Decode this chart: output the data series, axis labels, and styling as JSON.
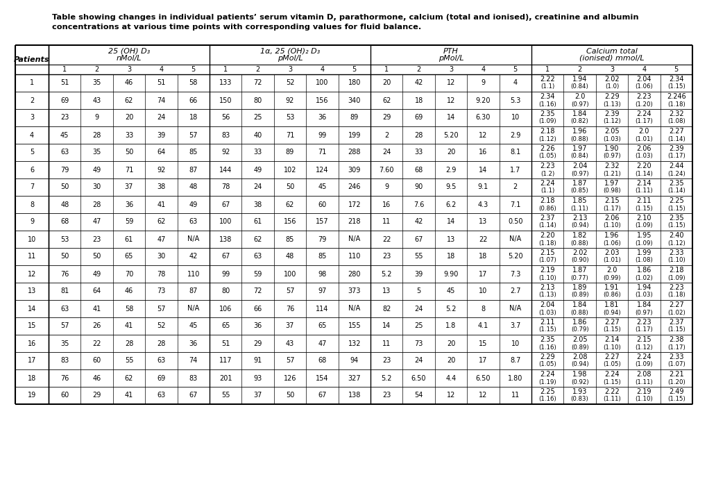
{
  "title_line1": "Table showing changes in individual patients’ serum vitamin D, parathormone, calcium (total and ionised), creatinine and albumin",
  "title_line2": "concentrations at various time points with corresponding values for fluid balance.",
  "col_groups": [
    {
      "label": "25 (OH) D₃\nnMol/L",
      "span": 5
    },
    {
      "label": "1α, 25 (OH)₂ D₃\npMol/L",
      "span": 5
    },
    {
      "label": "PTH\npMol/L",
      "span": 5
    },
    {
      "label": "Calcium total\n(ionised) mmol/L",
      "span": 5
    }
  ],
  "sub_cols": [
    "1",
    "2",
    "3",
    "4",
    "5"
  ],
  "rows": [
    {
      "patient": "1",
      "vd": [
        "51",
        "35",
        "46",
        "51",
        "58"
      ],
      "vd2": [
        "133",
        "72",
        "52",
        "100",
        "180"
      ],
      "pth": [
        "20",
        "42",
        "12",
        "9",
        "4"
      ],
      "ca": [
        [
          "2.22",
          "(1.1)"
        ],
        [
          "1.94",
          "(0.84)"
        ],
        [
          "2.02",
          "(1.0)"
        ],
        [
          "2.04",
          "(1.06)"
        ],
        [
          "2.34",
          "(1.15)"
        ]
      ]
    },
    {
      "patient": "2",
      "vd": [
        "69",
        "43",
        "62",
        "74",
        "66"
      ],
      "vd2": [
        "150",
        "80",
        "92",
        "156",
        "340"
      ],
      "pth": [
        "62",
        "18",
        "12",
        "9.20",
        "5.3"
      ],
      "ca": [
        [
          "2.34",
          "(1.16)"
        ],
        [
          "2.0",
          "(0.97)"
        ],
        [
          "2.29",
          "(1.13)"
        ],
        [
          "2.23",
          "(1.20)"
        ],
        [
          "2.246",
          "(1.18)"
        ]
      ]
    },
    {
      "patient": "3",
      "vd": [
        "23",
        "9",
        "20",
        "24",
        "18"
      ],
      "vd2": [
        "56",
        "25",
        "53",
        "36",
        "89"
      ],
      "pth": [
        "29",
        "69",
        "14",
        "6.30",
        "10"
      ],
      "ca": [
        [
          "2.35",
          "(1.09)"
        ],
        [
          "1.84",
          "(0.82)"
        ],
        [
          "2.39",
          "(1.12)"
        ],
        [
          "2.24",
          "(1.17)"
        ],
        [
          "2.32",
          "(1.08)"
        ]
      ]
    },
    {
      "patient": "4",
      "vd": [
        "45",
        "28",
        "33",
        "39",
        "57"
      ],
      "vd2": [
        "83",
        "40",
        "71",
        "99",
        "199"
      ],
      "pth": [
        "2",
        "28",
        "5.20",
        "12",
        "2.9"
      ],
      "ca": [
        [
          "2.18",
          "(1.12)"
        ],
        [
          "1.96",
          "(0.88)"
        ],
        [
          "2.05",
          "(1.03)"
        ],
        [
          "2.0",
          "(1.01)"
        ],
        [
          "2.27",
          "(1.14)"
        ]
      ]
    },
    {
      "patient": "5",
      "vd": [
        "63",
        "35",
        "50",
        "64",
        "85"
      ],
      "vd2": [
        "92",
        "33",
        "89",
        "71",
        "288"
      ],
      "pth": [
        "24",
        "33",
        "20",
        "16",
        "8.1"
      ],
      "ca": [
        [
          "2.26",
          "(1.05)"
        ],
        [
          "1.97",
          "(0.84)"
        ],
        [
          "1.90",
          "(0.97)"
        ],
        [
          "2.06",
          "(1.03)"
        ],
        [
          "2.39",
          "(1.17)"
        ]
      ]
    },
    {
      "patient": "6",
      "vd": [
        "79",
        "49",
        "71",
        "92",
        "87"
      ],
      "vd2": [
        "144",
        "49",
        "102",
        "124",
        "309"
      ],
      "pth": [
        "7.60",
        "68",
        "2.9",
        "14",
        "1.7"
      ],
      "ca": [
        [
          "2.23",
          "(1.2)"
        ],
        [
          "2.04",
          "(0.97)"
        ],
        [
          "2.32",
          "(1.21)"
        ],
        [
          "2.20",
          "(1.14)"
        ],
        [
          "2.44",
          "(1.24)"
        ]
      ]
    },
    {
      "patient": "7",
      "vd": [
        "50",
        "30",
        "37",
        "38",
        "48"
      ],
      "vd2": [
        "78",
        "24",
        "50",
        "45",
        "246"
      ],
      "pth": [
        "9",
        "90",
        "9.5",
        "9.1",
        "2"
      ],
      "ca": [
        [
          "2.24",
          "(1.1)"
        ],
        [
          "1.87",
          "(0.85)"
        ],
        [
          "1.97",
          "(0.98)"
        ],
        [
          "2.14",
          "(1.11)"
        ],
        [
          "2.35",
          "(1.14)"
        ]
      ]
    },
    {
      "patient": "8",
      "vd": [
        "48",
        "28",
        "36",
        "41",
        "49"
      ],
      "vd2": [
        "67",
        "38",
        "62",
        "60",
        "172"
      ],
      "pth": [
        "16",
        "7.6",
        "6.2",
        "4.3",
        "7.1"
      ],
      "ca": [
        [
          "2.18",
          "(0.86)"
        ],
        [
          "1.85",
          "(1.11)"
        ],
        [
          "2.15",
          "(1.17)"
        ],
        [
          "2.11",
          "(1.15)"
        ],
        [
          "2.25",
          "(1.15)"
        ]
      ]
    },
    {
      "patient": "9",
      "vd": [
        "68",
        "47",
        "59",
        "62",
        "63"
      ],
      "vd2": [
        "100",
        "61",
        "156",
        "157",
        "218"
      ],
      "pth": [
        "11",
        "42",
        "14",
        "13",
        "0.50"
      ],
      "ca": [
        [
          "2.37",
          "(1.14)"
        ],
        [
          "2.13",
          "(0.94)"
        ],
        [
          "2.06",
          "(1.10)"
        ],
        [
          "2.10",
          "(1.09)"
        ],
        [
          "2.35",
          "(1.15)"
        ]
      ]
    },
    {
      "patient": "10",
      "vd": [
        "53",
        "23",
        "61",
        "47",
        "N/A"
      ],
      "vd2": [
        "138",
        "62",
        "85",
        "79",
        "N/A"
      ],
      "pth": [
        "22",
        "67",
        "13",
        "22",
        "N/A"
      ],
      "ca": [
        [
          "2.20",
          "(1.18)"
        ],
        [
          "1.82",
          "(0.88)"
        ],
        [
          "1.96",
          "(1.06)"
        ],
        [
          "1.95",
          "(1.09)"
        ],
        [
          "2.40",
          "(1.12)"
        ]
      ]
    },
    {
      "patient": "11",
      "vd": [
        "50",
        "50",
        "65",
        "30",
        "42"
      ],
      "vd2": [
        "67",
        "63",
        "48",
        "85",
        "110"
      ],
      "pth": [
        "23",
        "55",
        "18",
        "18",
        "5.20"
      ],
      "ca": [
        [
          "2.15",
          "(1.07)"
        ],
        [
          "2.02",
          "(0.90)"
        ],
        [
          "2.03",
          "(1.01)"
        ],
        [
          "1.99",
          "(1.08)"
        ],
        [
          "2.33",
          "(1.10)"
        ]
      ]
    },
    {
      "patient": "12",
      "vd": [
        "76",
        "49",
        "70",
        "78",
        "110"
      ],
      "vd2": [
        "99",
        "59",
        "100",
        "98",
        "280"
      ],
      "pth": [
        "5.2",
        "39",
        "9.90",
        "17",
        "7.3"
      ],
      "ca": [
        [
          "2.19",
          "(1.10)"
        ],
        [
          "1.87",
          "(0.77)"
        ],
        [
          "2.0",
          "(0.99)"
        ],
        [
          "1.86",
          "(1.02)"
        ],
        [
          "2.18",
          "(1.09)"
        ]
      ]
    },
    {
      "patient": "13",
      "vd": [
        "81",
        "64",
        "46",
        "73",
        "87"
      ],
      "vd2": [
        "80",
        "72",
        "57",
        "97",
        "373"
      ],
      "pth": [
        "13",
        "5",
        "45",
        "10",
        "2.7"
      ],
      "ca": [
        [
          "2.13",
          "(1.13)"
        ],
        [
          "1.89",
          "(0.89)"
        ],
        [
          "1.91",
          "(0.86)"
        ],
        [
          "1.94",
          "(1.03)"
        ],
        [
          "2.23",
          "(1.18)"
        ]
      ]
    },
    {
      "patient": "14",
      "vd": [
        "63",
        "41",
        "58",
        "57",
        "N/A"
      ],
      "vd2": [
        "106",
        "66",
        "76",
        "114",
        "N/A"
      ],
      "pth": [
        "82",
        "24",
        "5.2",
        "8",
        "N/A"
      ],
      "ca": [
        [
          "2.04",
          "(1.03)"
        ],
        [
          "1.84",
          "(0.88)"
        ],
        [
          "1.81",
          "(0.94)"
        ],
        [
          "1.84",
          "(0.97)"
        ],
        [
          "2.27",
          "(1.02)"
        ]
      ]
    },
    {
      "patient": "15",
      "vd": [
        "57",
        "26",
        "41",
        "52",
        "45"
      ],
      "vd2": [
        "65",
        "36",
        "37",
        "65",
        "155"
      ],
      "pth": [
        "14",
        "25",
        "1.8",
        "4.1",
        "3.7"
      ],
      "ca": [
        [
          "2.11",
          "(1.15)"
        ],
        [
          "1.86",
          "(0.79)"
        ],
        [
          "2.27",
          "(1.15)"
        ],
        [
          "2.23",
          "(1.17)"
        ],
        [
          "2.37",
          "(1.15)"
        ]
      ]
    },
    {
      "patient": "16",
      "vd": [
        "35",
        "22",
        "28",
        "28",
        "36"
      ],
      "vd2": [
        "51",
        "29",
        "43",
        "47",
        "132"
      ],
      "pth": [
        "11",
        "73",
        "20",
        "15",
        "10"
      ],
      "ca": [
        [
          "2.35",
          "(1.16)"
        ],
        [
          "2.05",
          "(0.89)"
        ],
        [
          "2.14",
          "(1.10)"
        ],
        [
          "2.15",
          "(1.12)"
        ],
        [
          "2.38",
          "(1.17)"
        ]
      ]
    },
    {
      "patient": "17",
      "vd": [
        "83",
        "60",
        "55",
        "63",
        "74"
      ],
      "vd2": [
        "117",
        "91",
        "57",
        "68",
        "94"
      ],
      "pth": [
        "23",
        "24",
        "20",
        "17",
        "8.7"
      ],
      "ca": [
        [
          "2.29",
          "(1.05)"
        ],
        [
          "2.08",
          "(0.94)"
        ],
        [
          "2.27",
          "(1.05)"
        ],
        [
          "2.24",
          "(1.09)"
        ],
        [
          "2.33",
          "(1.07)"
        ]
      ]
    },
    {
      "patient": "18",
      "vd": [
        "76",
        "46",
        "62",
        "69",
        "83"
      ],
      "vd2": [
        "201",
        "93",
        "126",
        "154",
        "327"
      ],
      "pth": [
        "5.2",
        "6.50",
        "4.4",
        "6.50",
        "1.80"
      ],
      "ca": [
        [
          "2.24",
          "(1.19)"
        ],
        [
          "1.98",
          "(0.92)"
        ],
        [
          "2.24",
          "(1.15)"
        ],
        [
          "2.08",
          "(1.11)"
        ],
        [
          "2.21",
          "(1.20)"
        ]
      ]
    },
    {
      "patient": "19",
      "vd": [
        "60",
        "29",
        "41",
        "63",
        "67"
      ],
      "vd2": [
        "55",
        "37",
        "50",
        "67",
        "138"
      ],
      "pth": [
        "23",
        "54",
        "12",
        "12",
        "11"
      ],
      "ca": [
        [
          "2.25",
          "(1.16)"
        ],
        [
          "1.93",
          "(0.83)"
        ],
        [
          "2.22",
          "(1.11)"
        ],
        [
          "2.19",
          "(1.10)"
        ],
        [
          "2.49",
          "(1.15)"
        ]
      ]
    }
  ]
}
